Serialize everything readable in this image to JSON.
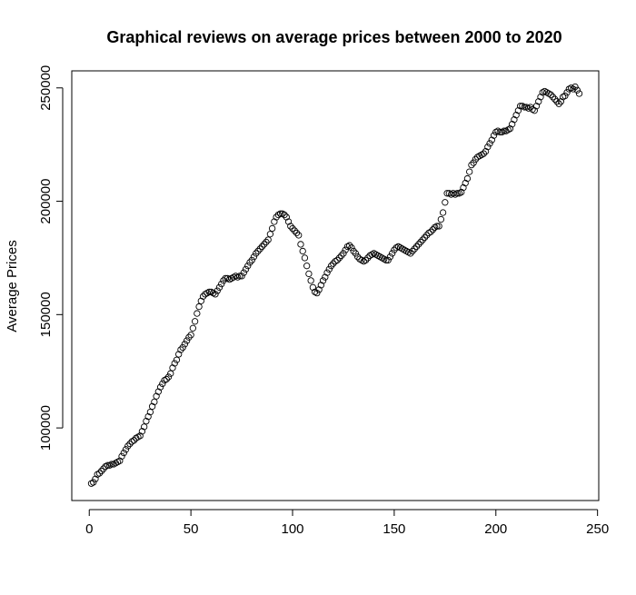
{
  "chart_data": {
    "type": "scatter",
    "title": "Graphical reviews on average prices between 2000 to 2020",
    "ylabel": "Average Prices",
    "color": "#000000",
    "xlim": [
      -8.6,
      250.6
    ],
    "xticks": [
      0,
      50,
      100,
      150,
      200,
      250
    ],
    "ylim": [
      67980,
      257520
    ],
    "yticks": [
      100000,
      150000,
      200000,
      250000
    ],
    "x": [
      1,
      2,
      3,
      4,
      5,
      6,
      7,
      8,
      9,
      10,
      11,
      12,
      13,
      14,
      15,
      16,
      17,
      18,
      19,
      20,
      21,
      22,
      23,
      24,
      25,
      26,
      27,
      28,
      29,
      30,
      31,
      32,
      33,
      34,
      35,
      36,
      37,
      38,
      39,
      40,
      41,
      42,
      43,
      44,
      45,
      46,
      47,
      48,
      49,
      50,
      51,
      52,
      53,
      54,
      55,
      56,
      57,
      58,
      59,
      60,
      61,
      62,
      63,
      64,
      65,
      66,
      67,
      68,
      69,
      70,
      71,
      72,
      73,
      74,
      75,
      76,
      77,
      78,
      79,
      80,
      81,
      82,
      83,
      84,
      85,
      86,
      87,
      88,
      89,
      90,
      91,
      92,
      93,
      94,
      95,
      96,
      97,
      98,
      99,
      100,
      101,
      102,
      103,
      104,
      105,
      106,
      107,
      108,
      109,
      110,
      111,
      112,
      113,
      114,
      115,
      116,
      117,
      118,
      119,
      120,
      121,
      122,
      123,
      124,
      125,
      126,
      127,
      128,
      129,
      130,
      131,
      132,
      133,
      134,
      135,
      136,
      137,
      138,
      139,
      140,
      141,
      142,
      143,
      144,
      145,
      146,
      147,
      148,
      149,
      150,
      151,
      152,
      153,
      154,
      155,
      156,
      157,
      158,
      159,
      160,
      161,
      162,
      163,
      164,
      165,
      166,
      167,
      168,
      169,
      170,
      171,
      172,
      173,
      174,
      175,
      176,
      177,
      178,
      179,
      180,
      181,
      182,
      183,
      184,
      185,
      186,
      187,
      188,
      189,
      190,
      191,
      192,
      193,
      194,
      195,
      196,
      197,
      198,
      199,
      200,
      201,
      202,
      203,
      204,
      205,
      206,
      207,
      208,
      209,
      210,
      211,
      212,
      213,
      214,
      215,
      216,
      217,
      218,
      219,
      220,
      221,
      222,
      223,
      224,
      225,
      226,
      227,
      228,
      229,
      230,
      231,
      232,
      233,
      234,
      235,
      236,
      237,
      238,
      239,
      240,
      241
    ],
    "values": [
      75500,
      76000,
      77500,
      79500,
      80000,
      81000,
      82000,
      83000,
      83500,
      83500,
      84000,
      84000,
      84500,
      85000,
      85500,
      87500,
      89000,
      90500,
      92000,
      93000,
      94000,
      94500,
      95500,
      96000,
      96500,
      98500,
      100500,
      103000,
      105000,
      107000,
      109500,
      111500,
      114000,
      116000,
      118000,
      119500,
      121000,
      121500,
      122500,
      124000,
      126500,
      128500,
      130000,
      132500,
      134500,
      135500,
      137000,
      138500,
      140000,
      141000,
      144000,
      147000,
      150500,
      153500,
      156000,
      158000,
      159000,
      159500,
      160000,
      160000,
      159500,
      159000,
      160500,
      162000,
      163500,
      165000,
      166000,
      166000,
      165500,
      166000,
      166500,
      167000,
      166500,
      167000,
      167000,
      168500,
      170000,
      171500,
      173000,
      174000,
      175500,
      177000,
      178000,
      179000,
      180000,
      181000,
      182000,
      183000,
      185500,
      188000,
      191000,
      193000,
      194000,
      194500,
      194500,
      194000,
      193000,
      191000,
      189000,
      188000,
      187000,
      186000,
      185000,
      181000,
      178000,
      175000,
      171500,
      168000,
      165000,
      162000,
      160000,
      159500,
      161000,
      163000,
      165000,
      166500,
      168500,
      170000,
      171500,
      172500,
      173500,
      174000,
      175000,
      176000,
      177000,
      178500,
      180000,
      180500,
      179500,
      178000,
      177000,
      175500,
      174500,
      174000,
      173500,
      174000,
      175000,
      176000,
      176500,
      177000,
      176500,
      176000,
      175500,
      175000,
      174500,
      174000,
      174000,
      175500,
      177000,
      178500,
      179500,
      180000,
      179500,
      179000,
      178500,
      178000,
      177500,
      177000,
      178000,
      179000,
      180000,
      181000,
      182000,
      183000,
      184000,
      185000,
      186000,
      186500,
      187500,
      188500,
      189000,
      189000,
      192000,
      195000,
      199500,
      203500,
      203500,
      203000,
      203500,
      203000,
      203500,
      203500,
      204000,
      206000,
      208000,
      210000,
      213000,
      216000,
      217000,
      218500,
      219500,
      220000,
      220500,
      221000,
      222000,
      224000,
      225500,
      227000,
      229000,
      230500,
      231000,
      230500,
      230500,
      231000,
      231000,
      231500,
      232000,
      234000,
      236000,
      238000,
      240000,
      242000,
      242000,
      241500,
      241500,
      241000,
      241500,
      240500,
      240000,
      242000,
      244000,
      246000,
      248000,
      248500,
      248000,
      247500,
      247000,
      246000,
      245000,
      244000,
      243000,
      244000,
      246000,
      246500,
      248000,
      249500,
      250000,
      249500,
      250500,
      249000,
      247500
    ]
  }
}
